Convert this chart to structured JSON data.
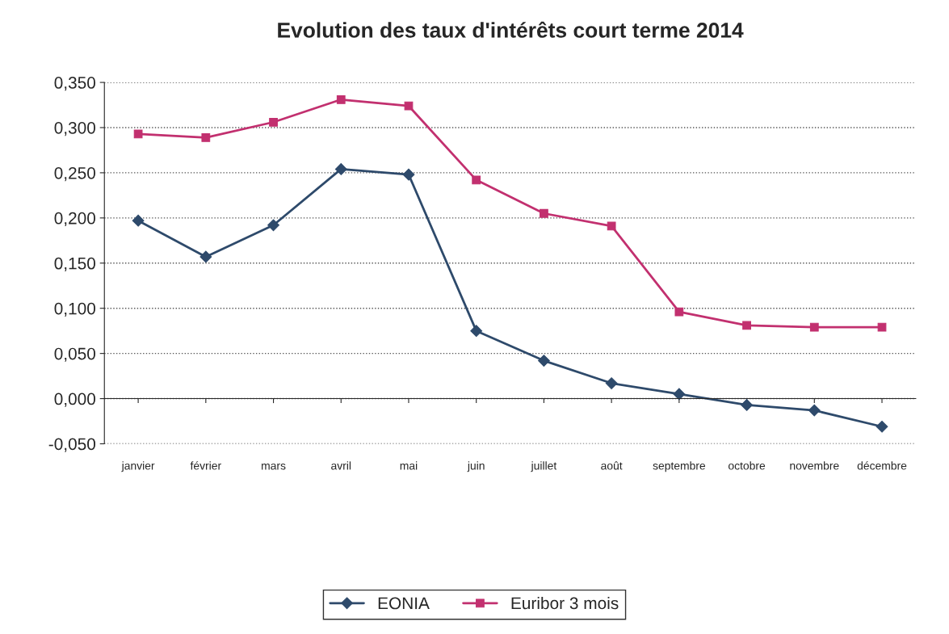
{
  "chart_data": {
    "type": "line",
    "title": "Evolution des taux d'intérêts court terme 2014",
    "categories": [
      "janvier",
      "février",
      "mars",
      "avril",
      "mai",
      "juin",
      "juillet",
      "août",
      "septembre",
      "octobre",
      "novembre",
      "décembre"
    ],
    "series": [
      {
        "name": "EONIA",
        "color": "#2e4a6b",
        "marker": "diamond",
        "values": [
          0.197,
          0.157,
          0.192,
          0.254,
          0.248,
          0.075,
          0.042,
          0.017,
          0.005,
          -0.007,
          -0.013,
          -0.031
        ]
      },
      {
        "name": "Euribor 3 mois",
        "color": "#c2306f",
        "marker": "square",
        "values": [
          0.293,
          0.289,
          0.306,
          0.331,
          0.324,
          0.242,
          0.205,
          0.191,
          0.096,
          0.081,
          0.079,
          0.079
        ]
      }
    ],
    "ylim": [
      -0.05,
      0.35
    ],
    "yticks": [
      {
        "value": -0.05,
        "label": "-0,050"
      },
      {
        "value": 0,
        "label": "0,000"
      },
      {
        "value": 0.05,
        "label": "0,050"
      },
      {
        "value": 0.1,
        "label": "0,100"
      },
      {
        "value": 0.15,
        "label": "0,150"
      },
      {
        "value": 0.2,
        "label": "0,200"
      },
      {
        "value": 0.25,
        "label": "0,250"
      },
      {
        "value": 0.3,
        "label": "0,300"
      },
      {
        "value": 0.35,
        "label": "0,350"
      }
    ],
    "grid": "y",
    "legend": "bottom",
    "line_style": "solid"
  }
}
